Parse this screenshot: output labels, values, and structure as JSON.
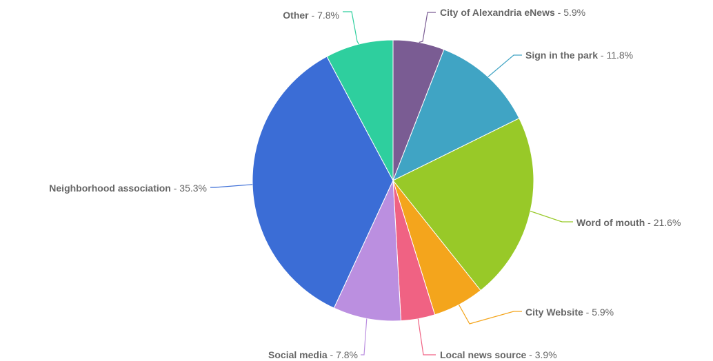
{
  "chart_data": {
    "type": "pie",
    "title": "",
    "slices": [
      {
        "label": "City of Alexandria eNews",
        "value": 5.9,
        "display": "5.9%",
        "color": "#7a5c93"
      },
      {
        "label": "Sign in the park",
        "value": 11.8,
        "display": "11.8%",
        "color": "#40a4c4"
      },
      {
        "label": "Word of mouth",
        "value": 21.6,
        "display": "21.6%",
        "color": "#98c928"
      },
      {
        "label": "City Website",
        "value": 5.9,
        "display": "5.9%",
        "color": "#f4a51c"
      },
      {
        "label": "Local news source",
        "value": 3.9,
        "display": "3.9%",
        "color": "#f06283"
      },
      {
        "label": "Social media",
        "value": 7.8,
        "display": "7.8%",
        "color": "#bb8fe0"
      },
      {
        "label": "Neighborhood association",
        "value": 35.3,
        "display": "35.3%",
        "color": "#3b6dd6"
      },
      {
        "label": "Other",
        "value": 7.8,
        "display": "7.8%",
        "color": "#2ecf9e"
      }
    ],
    "separator": " - "
  }
}
